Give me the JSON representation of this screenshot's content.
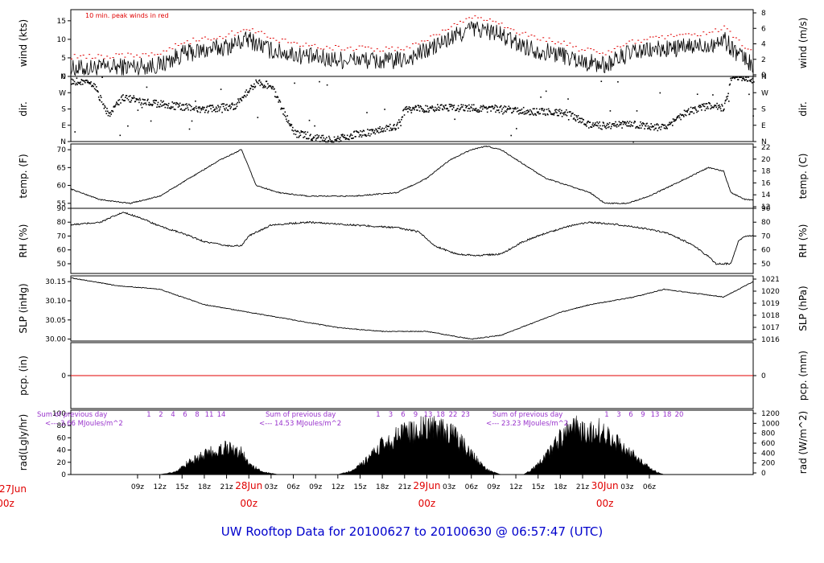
{
  "chart_data": {
    "type": "line",
    "title": "UW Rooftop Data for 20100627  to  20100630 @ 06:57:47  (UTC)",
    "time_axis": {
      "hour_ticks": [
        "09z",
        "12z",
        "15z",
        "18z",
        "21z",
        "28Jun",
        "03z",
        "06z",
        "09z",
        "12z",
        "15z",
        "18z",
        "21z",
        "29Jun",
        "03z",
        "06z",
        "09z",
        "12z",
        "15z",
        "18z",
        "21z",
        "30Jun",
        "03z",
        "06z"
      ],
      "day_labels": [
        {
          "date": "27Jun",
          "time": "00z"
        },
        {
          "date": "28Jun",
          "time": "00z"
        },
        {
          "date": "29Jun",
          "time": "00z"
        },
        {
          "date": "30Jun",
          "time": "00z"
        }
      ]
    },
    "panels": [
      {
        "id": "wind",
        "ylabel": "wind (kts)",
        "ylabel_right": "wind (m/s)",
        "ylim": [
          0,
          18
        ],
        "yticks": [
          "0",
          "5",
          "10",
          "15"
        ],
        "yticks_right": [
          "0",
          "2",
          "4",
          "6",
          "8"
        ],
        "annotation": "10 min. peak winds in red",
        "knots": [
          [
            0,
            2
          ],
          [
            6,
            2.5
          ],
          [
            12,
            3
          ],
          [
            15,
            6
          ],
          [
            21,
            8
          ],
          [
            24,
            10
          ],
          [
            27,
            7
          ],
          [
            30,
            6
          ],
          [
            33,
            5
          ],
          [
            36,
            4.5
          ],
          [
            39,
            4.5
          ],
          [
            42,
            4
          ],
          [
            45,
            4.5
          ],
          [
            48,
            7
          ],
          [
            51,
            10
          ],
          [
            54,
            13
          ],
          [
            57,
            12
          ],
          [
            60,
            9
          ],
          [
            63,
            7
          ],
          [
            66,
            6
          ],
          [
            69,
            4
          ],
          [
            72,
            3
          ],
          [
            75,
            6
          ],
          [
            78,
            7
          ],
          [
            81,
            7.5
          ],
          [
            84,
            8
          ],
          [
            87,
            9
          ],
          [
            88,
            10
          ],
          [
            90,
            6
          ],
          [
            92,
            3
          ]
        ]
      },
      {
        "id": "dir",
        "ylabel": "dir.",
        "ylabel_right": "dir.",
        "ylim": [
          0,
          360
        ],
        "yticks": [
          "N",
          "E",
          "S",
          "W",
          "N"
        ],
        "yticks_right": [
          "N",
          "E",
          "S",
          "W",
          "N"
        ],
        "knots": [
          [
            0,
            340
          ],
          [
            3,
            320
          ],
          [
            5,
            150
          ],
          [
            7,
            250
          ],
          [
            10,
            220
          ],
          [
            14,
            200
          ],
          [
            18,
            180
          ],
          [
            22,
            200
          ],
          [
            25,
            330
          ],
          [
            27,
            310
          ],
          [
            30,
            50
          ],
          [
            35,
            10
          ],
          [
            38,
            40
          ],
          [
            41,
            60
          ],
          [
            44,
            90
          ],
          [
            45,
            180
          ],
          [
            50,
            190
          ],
          [
            57,
            185
          ],
          [
            62,
            170
          ],
          [
            67,
            160
          ],
          [
            70,
            90
          ],
          [
            75,
            100
          ],
          [
            80,
            80
          ],
          [
            83,
            170
          ],
          [
            86,
            200
          ],
          [
            88,
            190
          ],
          [
            89,
            360
          ],
          [
            92,
            345
          ]
        ]
      },
      {
        "id": "temp",
        "ylabel": "temp. (F)",
        "ylabel_right": "temp. (C)",
        "ylim": [
          53.6,
          71.6
        ],
        "yticks": [
          "55",
          "60",
          "65",
          "70"
        ],
        "yticks_right": [
          "12",
          "14",
          "16",
          "18",
          "20",
          "22"
        ],
        "knots": [
          [
            0,
            59
          ],
          [
            4,
            56
          ],
          [
            8,
            55
          ],
          [
            12,
            57
          ],
          [
            16,
            62
          ],
          [
            20,
            67
          ],
          [
            22,
            69
          ],
          [
            23,
            70
          ],
          [
            24,
            65
          ],
          [
            25,
            60
          ],
          [
            28,
            58
          ],
          [
            32,
            57
          ],
          [
            38,
            57
          ],
          [
            44,
            58
          ],
          [
            48,
            62
          ],
          [
            51,
            67
          ],
          [
            54,
            70
          ],
          [
            56,
            71
          ],
          [
            58,
            70
          ],
          [
            61,
            66
          ],
          [
            64,
            62
          ],
          [
            67,
            60
          ],
          [
            70,
            58
          ],
          [
            72,
            55
          ],
          [
            75,
            55
          ],
          [
            78,
            57
          ],
          [
            81,
            60
          ],
          [
            84,
            63
          ],
          [
            86,
            65
          ],
          [
            88,
            64
          ],
          [
            89,
            58
          ],
          [
            91,
            56
          ],
          [
            92,
            56
          ]
        ]
      },
      {
        "id": "rh",
        "ylabel": "RH (%)",
        "ylabel_right": "RH (%)",
        "ylim": [
          43,
          90
        ],
        "yticks": [
          "50",
          "60",
          "70",
          "80",
          "90"
        ],
        "yticks_right": [
          "50",
          "60",
          "70",
          "80",
          "90"
        ],
        "knots": [
          [
            0,
            78
          ],
          [
            4,
            80
          ],
          [
            7,
            87
          ],
          [
            9,
            84
          ],
          [
            12,
            77
          ],
          [
            15,
            72
          ],
          [
            18,
            66
          ],
          [
            21,
            63
          ],
          [
            23,
            63
          ],
          [
            24,
            70
          ],
          [
            27,
            78
          ],
          [
            32,
            80
          ],
          [
            38,
            78
          ],
          [
            44,
            76
          ],
          [
            47,
            73
          ],
          [
            49,
            63
          ],
          [
            52,
            57
          ],
          [
            55,
            56
          ],
          [
            58,
            57
          ],
          [
            61,
            66
          ],
          [
            64,
            72
          ],
          [
            67,
            77
          ],
          [
            70,
            80
          ],
          [
            74,
            78
          ],
          [
            78,
            75
          ],
          [
            81,
            71
          ],
          [
            84,
            63
          ],
          [
            86,
            55
          ],
          [
            87,
            50
          ],
          [
            89,
            50
          ],
          [
            90,
            66
          ],
          [
            91,
            70
          ],
          [
            92,
            70
          ]
        ]
      },
      {
        "id": "slp",
        "ylabel": "SLP (inHg)",
        "ylabel_right": "SLP (hPa)",
        "ylim": [
          29.995,
          30.165
        ],
        "yticks": [
          "30.00",
          "30.05",
          "30.10",
          "30.15"
        ],
        "yticks_right": [
          "1016",
          "1017",
          "1018",
          "1019",
          "1020",
          "1021"
        ],
        "knots": [
          [
            0,
            30.16
          ],
          [
            6,
            30.14
          ],
          [
            12,
            30.13
          ],
          [
            18,
            30.09
          ],
          [
            24,
            30.07
          ],
          [
            30,
            30.05
          ],
          [
            36,
            30.03
          ],
          [
            42,
            30.02
          ],
          [
            48,
            30.02
          ],
          [
            54,
            30.0
          ],
          [
            58,
            30.01
          ],
          [
            62,
            30.04
          ],
          [
            66,
            30.07
          ],
          [
            70,
            30.09
          ],
          [
            76,
            30.11
          ],
          [
            80,
            30.13
          ],
          [
            84,
            30.12
          ],
          [
            88,
            30.11
          ],
          [
            92,
            30.15
          ]
        ]
      },
      {
        "id": "pcp",
        "ylabel": "pcp. (in)",
        "ylabel_right": "pcp. (mm)",
        "ylim": [
          -1,
          1
        ],
        "yticks": [
          "0"
        ],
        "yticks_right": [
          "0"
        ],
        "knots": [
          [
            0,
            0
          ],
          [
            92,
            0
          ]
        ]
      },
      {
        "id": "rad",
        "ylabel": "rad(Lgly/hr)",
        "ylabel_right": "rad (W/m^2)",
        "ylim": [
          0,
          105
        ],
        "yticks": [
          "0",
          "20",
          "40",
          "60",
          "80",
          "100"
        ],
        "yticks_right": [
          "0",
          "200",
          "400",
          "600",
          "800",
          "1000",
          "1200"
        ],
        "knots": [
          [
            0,
            0
          ],
          [
            12,
            0
          ],
          [
            14,
            5
          ],
          [
            16,
            25
          ],
          [
            18,
            40
          ],
          [
            21,
            55
          ],
          [
            23,
            45
          ],
          [
            24,
            20
          ],
          [
            26,
            5
          ],
          [
            28,
            0
          ],
          [
            36,
            0
          ],
          [
            38,
            8
          ],
          [
            40,
            30
          ],
          [
            42,
            60
          ],
          [
            45,
            85
          ],
          [
            48,
            95
          ],
          [
            50,
            90
          ],
          [
            52,
            75
          ],
          [
            54,
            40
          ],
          [
            56,
            10
          ],
          [
            58,
            0
          ],
          [
            60,
            0
          ],
          [
            61,
            0
          ],
          [
            62,
            8
          ],
          [
            64,
            35
          ],
          [
            66,
            75
          ],
          [
            68,
            95
          ],
          [
            69,
            85
          ],
          [
            71,
            90
          ],
          [
            73,
            70
          ],
          [
            75,
            50
          ],
          [
            77,
            25
          ],
          [
            79,
            5
          ],
          [
            80,
            0
          ],
          [
            92,
            0
          ]
        ]
      }
    ],
    "daily_radiation": [
      {
        "text": "Sum of previous day",
        "value": "<--- 3.66 MJoules/m^2",
        "hours": [
          "1",
          "2",
          "4",
          "6",
          "8",
          "11",
          "14"
        ]
      },
      {
        "text": "Sum of previous day",
        "value": "<--- 14.53 MJoules/m^2",
        "hours": [
          "1",
          "3",
          "6",
          "9",
          "13",
          "18",
          "22",
          "23"
        ]
      },
      {
        "text": "Sum of previous day",
        "value": "<--- 23.23 MJoules/m^2",
        "hours": [
          "1",
          "3",
          "6",
          "9",
          "13",
          "18",
          "20"
        ]
      }
    ]
  },
  "colors": {
    "line": "#000000",
    "peak": "#e00000",
    "precip": "#e00000",
    "day_label": "#e00000",
    "title": "#0000cc",
    "sun": "#9933cc"
  }
}
